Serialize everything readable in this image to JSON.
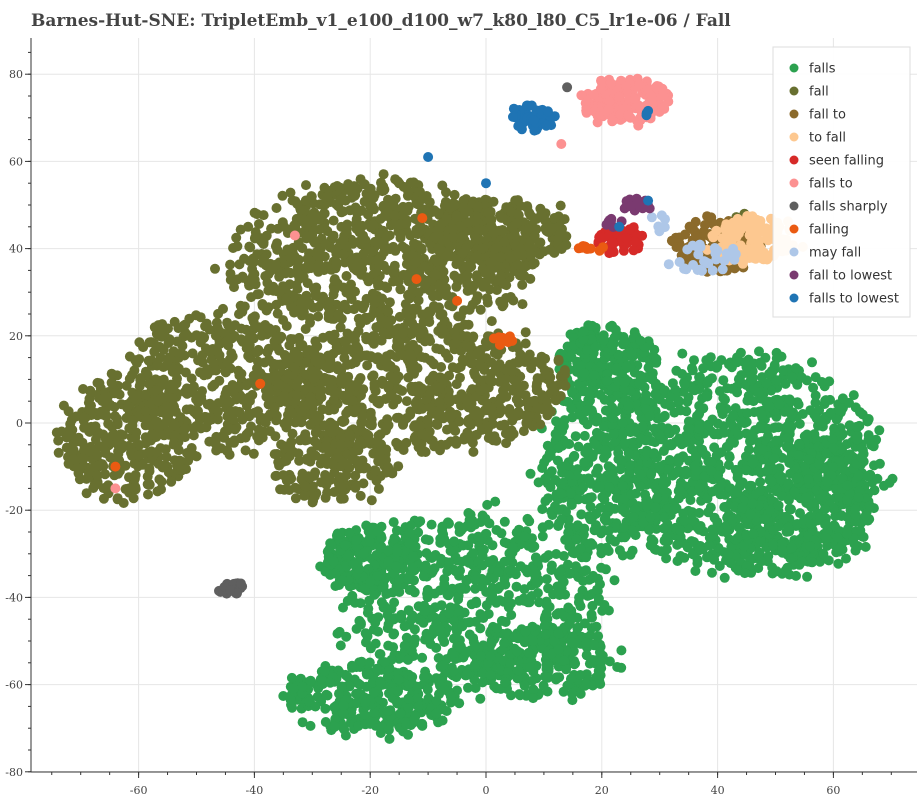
{
  "title": "Barnes-Hut-SNE: TripletEmb_v1_e100_d100_w7_k80_l80_C5_lr1e-06 / Fall",
  "chart_data": {
    "type": "scatter",
    "title": "Barnes-Hut-SNE: TripletEmb_v1_e100_d100_w7_k80_l80_C5_lr1e-06 / Fall",
    "xlabel": "",
    "ylabel": "",
    "xlim": [
      -78,
      74
    ],
    "ylim": [
      -81,
      88
    ],
    "xticks": [
      -60,
      -40,
      -20,
      0,
      20,
      40,
      60
    ],
    "yticks": [
      -80,
      -60,
      -40,
      -20,
      0,
      20,
      40,
      60,
      80
    ],
    "grid": true,
    "legend_position": "top-right",
    "series": [
      {
        "name": "falls",
        "color": "#2ca14f",
        "clusters": [
          {
            "cx": 45,
            "cy": -10,
            "rx": 22,
            "ry": 24,
            "n": 1100
          },
          {
            "cx": 20,
            "cy": -10,
            "rx": 10,
            "ry": 20,
            "n": 400
          },
          {
            "cx": 21,
            "cy": 14,
            "rx": 8,
            "ry": 8,
            "n": 220
          },
          {
            "cx": -2,
            "cy": -40,
            "rx": 22,
            "ry": 18,
            "n": 650
          },
          {
            "cx": -20,
            "cy": -31,
            "rx": 8,
            "ry": 7,
            "n": 180
          },
          {
            "cx": -20,
            "cy": -63,
            "rx": 14,
            "ry": 8,
            "n": 300
          },
          {
            "cx": 8,
            "cy": -55,
            "rx": 14,
            "ry": 8,
            "n": 220
          },
          {
            "cx": 55,
            "cy": -18,
            "rx": 12,
            "ry": 14,
            "n": 300
          }
        ]
      },
      {
        "name": "fall",
        "color": "#687030",
        "clusters": [
          {
            "cx": -18,
            "cy": 38,
            "rx": 24,
            "ry": 17,
            "n": 900
          },
          {
            "cx": 2,
            "cy": 43,
            "rx": 12,
            "ry": 8,
            "n": 260
          },
          {
            "cx": -12,
            "cy": 8,
            "rx": 24,
            "ry": 14,
            "n": 750
          },
          {
            "cx": -45,
            "cy": 10,
            "rx": 16,
            "ry": 16,
            "n": 450
          },
          {
            "cx": -62,
            "cy": -4,
            "rx": 11,
            "ry": 13,
            "n": 320
          },
          {
            "cx": -26,
            "cy": -10,
            "rx": 10,
            "ry": 8,
            "n": 180
          },
          {
            "cx": 44,
            "cy": 45,
            "rx": 3,
            "ry": 3,
            "n": 12
          }
        ]
      },
      {
        "name": "fall to",
        "color": "#8b6a2b",
        "clusters": [
          {
            "cx": 40,
            "cy": 41,
            "rx": 7,
            "ry": 6,
            "n": 140
          }
        ]
      },
      {
        "name": "to fall",
        "color": "#fdc890",
        "clusters": [
          {
            "cx": 46,
            "cy": 42,
            "rx": 7,
            "ry": 5,
            "n": 130
          }
        ]
      },
      {
        "name": "seen falling",
        "color": "#d62a28",
        "clusters": [
          {
            "cx": 23,
            "cy": 42,
            "rx": 4,
            "ry": 3,
            "n": 45
          }
        ]
      },
      {
        "name": "falls to",
        "color": "#fc9191",
        "clusters": [
          {
            "cx": 24,
            "cy": 74,
            "rx": 7,
            "ry": 5,
            "n": 170
          },
          {
            "cx": -33,
            "cy": 43,
            "rx": 0.5,
            "ry": 0.5,
            "n": 1
          },
          {
            "cx": -64,
            "cy": -15,
            "rx": 0.5,
            "ry": 0.5,
            "n": 1
          },
          {
            "cx": 13,
            "cy": 64,
            "rx": 0.5,
            "ry": 0.5,
            "n": 1
          }
        ]
      },
      {
        "name": "falls sharply",
        "color": "#5f5f5f",
        "clusters": [
          {
            "cx": -44,
            "cy": -38,
            "rx": 2.5,
            "ry": 1.3,
            "n": 22
          },
          {
            "cx": 14,
            "cy": 77,
            "rx": 0.5,
            "ry": 0.5,
            "n": 1
          }
        ]
      },
      {
        "name": "falling",
        "color": "#ea5a12",
        "clusters": [
          {
            "cx": 3,
            "cy": 19,
            "rx": 1.5,
            "ry": 1.2,
            "n": 12
          },
          {
            "cx": 18,
            "cy": 40,
            "rx": 2.5,
            "ry": 0.6,
            "n": 10
          },
          {
            "cx": -12,
            "cy": 33,
            "rx": 0.5,
            "ry": 0.5,
            "n": 1
          },
          {
            "cx": -39,
            "cy": 9,
            "rx": 0.5,
            "ry": 0.5,
            "n": 1
          },
          {
            "cx": -5,
            "cy": 28,
            "rx": 0.5,
            "ry": 0.5,
            "n": 1
          },
          {
            "cx": -64,
            "cy": -10,
            "rx": 0.5,
            "ry": 0.5,
            "n": 1
          },
          {
            "cx": -11,
            "cy": 47,
            "rx": 0.5,
            "ry": 0.5,
            "n": 1
          }
        ]
      },
      {
        "name": "may fall",
        "color": "#aec7e8",
        "clusters": [
          {
            "cx": 37,
            "cy": 38,
            "rx": 6,
            "ry": 3,
            "n": 30
          },
          {
            "cx": 30,
            "cy": 46,
            "rx": 2,
            "ry": 2,
            "n": 6
          }
        ]
      },
      {
        "name": "fall to lowest",
        "color": "#7a3a70",
        "clusters": [
          {
            "cx": 26,
            "cy": 50,
            "rx": 2.5,
            "ry": 1.5,
            "n": 20
          },
          {
            "cx": 22,
            "cy": 46,
            "rx": 1.5,
            "ry": 1,
            "n": 8
          }
        ]
      },
      {
        "name": "falls to lowest",
        "color": "#1f74b4",
        "clusters": [
          {
            "cx": 8,
            "cy": 70,
            "rx": 3.5,
            "ry": 3,
            "n": 55
          },
          {
            "cx": 28,
            "cy": 71,
            "rx": 1,
            "ry": 0.6,
            "n": 3
          },
          {
            "cx": -10,
            "cy": 61,
            "rx": 0.5,
            "ry": 0.5,
            "n": 1
          },
          {
            "cx": 0,
            "cy": 55,
            "rx": 0.5,
            "ry": 0.5,
            "n": 1
          },
          {
            "cx": 28,
            "cy": 51,
            "rx": 0.5,
            "ry": 0.5,
            "n": 1
          },
          {
            "cx": 23,
            "cy": 45,
            "rx": 0.5,
            "ry": 0.5,
            "n": 1
          }
        ]
      }
    ]
  }
}
